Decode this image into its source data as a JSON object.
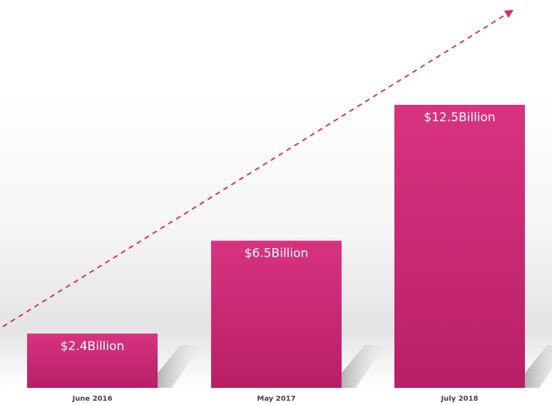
{
  "chart_data": {
    "type": "bar",
    "categories": [
      "June 2016",
      "May 2017",
      "July 2018"
    ],
    "values": [
      2.4,
      6.5,
      12.5
    ],
    "value_labels": [
      "$2.4Billion",
      "$6.5Billion",
      "$12.5Billion"
    ],
    "title": "",
    "xlabel": "",
    "ylabel": "",
    "ylim": [
      0,
      12.5
    ],
    "grid": false,
    "legend": "none",
    "trend_arrow": "dashed-upward",
    "colors": {
      "bar_top": "#d83380",
      "bar_bottom": "#b81f66",
      "arrow": "#d0306f",
      "band": "#e6e6e6"
    }
  }
}
